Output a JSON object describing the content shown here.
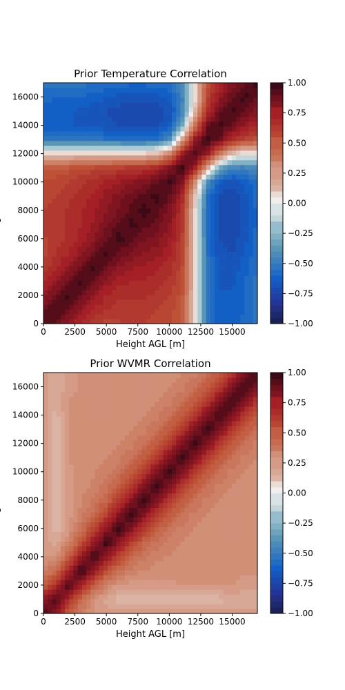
{
  "chart_data": [
    {
      "type": "heatmap",
      "title": "Prior Temperature Correlation",
      "xlabel": "Height AGL [m]",
      "ylabel": "Height AGL [m]",
      "xlim": [
        0,
        17000
      ],
      "ylim": [
        0,
        17000
      ],
      "xticks": [
        0,
        2500,
        5000,
        7500,
        10000,
        12500,
        15000
      ],
      "yticks": [
        0,
        2000,
        4000,
        6000,
        8000,
        10000,
        12000,
        14000,
        16000
      ],
      "x_tick_labels": [
        "0",
        "2500",
        "5000",
        "7500",
        "10000",
        "12500",
        "15000"
      ],
      "y_tick_labels": [
        "0",
        "2000",
        "4000",
        "6000",
        "8000",
        "10000",
        "12000",
        "14000",
        "16000"
      ],
      "colorbar": {
        "range": [
          -1.0,
          1.0
        ],
        "ticks": [
          -1.0,
          -0.75,
          -0.5,
          -0.25,
          0.0,
          0.25,
          0.5,
          0.75,
          1.0
        ],
        "tick_labels": [
          "−1.00",
          "−0.75",
          "−0.50",
          "−0.25",
          "0.00",
          "0.25",
          "0.50",
          "0.75",
          "1.00"
        ],
        "colormap": "balance"
      },
      "heights": [
        0,
        1000,
        2000,
        3000,
        4000,
        5000,
        6000,
        7000,
        8000,
        9000,
        10000,
        11000,
        12000,
        13000,
        14000,
        15000,
        16000,
        17000
      ],
      "values": [
        [
          1.0,
          0.9,
          0.8,
          0.7,
          0.65,
          0.6,
          0.62,
          0.62,
          0.62,
          0.6,
          0.58,
          0.5,
          0.1,
          -0.5,
          -0.6,
          -0.6,
          -0.55,
          -0.5
        ],
        [
          0.9,
          1.0,
          0.9,
          0.8,
          0.72,
          0.68,
          0.65,
          0.65,
          0.65,
          0.62,
          0.6,
          0.52,
          0.1,
          -0.5,
          -0.62,
          -0.62,
          -0.57,
          -0.5
        ],
        [
          0.8,
          0.9,
          1.0,
          0.9,
          0.8,
          0.72,
          0.68,
          0.68,
          0.68,
          0.66,
          0.63,
          0.55,
          0.1,
          -0.48,
          -0.62,
          -0.62,
          -0.58,
          -0.5
        ],
        [
          0.7,
          0.8,
          0.9,
          1.0,
          0.9,
          0.8,
          0.75,
          0.72,
          0.72,
          0.7,
          0.66,
          0.58,
          0.1,
          -0.48,
          -0.63,
          -0.64,
          -0.58,
          -0.5
        ],
        [
          0.65,
          0.72,
          0.8,
          0.9,
          1.0,
          0.9,
          0.82,
          0.78,
          0.76,
          0.74,
          0.7,
          0.6,
          0.1,
          -0.5,
          -0.64,
          -0.66,
          -0.6,
          -0.52
        ],
        [
          0.6,
          0.68,
          0.72,
          0.8,
          0.9,
          1.0,
          0.92,
          0.86,
          0.82,
          0.8,
          0.74,
          0.62,
          0.1,
          -0.52,
          -0.66,
          -0.68,
          -0.62,
          -0.54
        ],
        [
          0.62,
          0.65,
          0.68,
          0.75,
          0.82,
          0.92,
          1.0,
          0.93,
          0.88,
          0.85,
          0.78,
          0.64,
          0.12,
          -0.54,
          -0.68,
          -0.7,
          -0.64,
          -0.55
        ],
        [
          0.62,
          0.65,
          0.68,
          0.72,
          0.78,
          0.86,
          0.93,
          1.0,
          0.94,
          0.9,
          0.82,
          0.66,
          0.12,
          -0.55,
          -0.7,
          -0.72,
          -0.65,
          -0.56
        ],
        [
          0.62,
          0.65,
          0.68,
          0.72,
          0.76,
          0.82,
          0.88,
          0.94,
          1.0,
          0.94,
          0.86,
          0.68,
          0.12,
          -0.55,
          -0.7,
          -0.73,
          -0.66,
          -0.56
        ],
        [
          0.6,
          0.62,
          0.66,
          0.7,
          0.74,
          0.8,
          0.85,
          0.9,
          0.94,
          1.0,
          0.92,
          0.74,
          0.15,
          -0.52,
          -0.68,
          -0.72,
          -0.65,
          -0.55
        ],
        [
          0.58,
          0.6,
          0.63,
          0.66,
          0.7,
          0.74,
          0.78,
          0.82,
          0.86,
          0.92,
          1.0,
          0.85,
          0.35,
          -0.4,
          -0.62,
          -0.66,
          -0.62,
          -0.52
        ],
        [
          0.5,
          0.52,
          0.55,
          0.58,
          0.6,
          0.62,
          0.64,
          0.66,
          0.68,
          0.74,
          0.85,
          1.0,
          0.8,
          0.2,
          -0.3,
          -0.45,
          -0.45,
          -0.4
        ],
        [
          0.1,
          0.1,
          0.1,
          0.1,
          0.1,
          0.1,
          0.12,
          0.12,
          0.12,
          0.15,
          0.35,
          0.8,
          1.0,
          0.8,
          0.4,
          0.1,
          0.0,
          0.0
        ],
        [
          -0.5,
          -0.5,
          -0.48,
          -0.48,
          -0.5,
          -0.52,
          -0.54,
          -0.55,
          -0.55,
          -0.52,
          -0.4,
          0.2,
          0.8,
          1.0,
          0.9,
          0.7,
          0.6,
          0.55
        ],
        [
          -0.6,
          -0.62,
          -0.62,
          -0.63,
          -0.64,
          -0.66,
          -0.68,
          -0.7,
          -0.7,
          -0.68,
          -0.62,
          -0.3,
          0.4,
          0.9,
          1.0,
          0.9,
          0.8,
          0.72
        ],
        [
          -0.6,
          -0.62,
          -0.62,
          -0.64,
          -0.66,
          -0.68,
          -0.7,
          -0.72,
          -0.73,
          -0.72,
          -0.66,
          -0.45,
          0.1,
          0.7,
          0.9,
          1.0,
          0.92,
          0.85
        ],
        [
          -0.55,
          -0.57,
          -0.58,
          -0.58,
          -0.6,
          -0.62,
          -0.64,
          -0.65,
          -0.66,
          -0.65,
          -0.62,
          -0.45,
          0.0,
          0.6,
          0.8,
          0.92,
          1.0,
          0.92
        ],
        [
          -0.5,
          -0.5,
          -0.5,
          -0.5,
          -0.52,
          -0.54,
          -0.55,
          -0.56,
          -0.56,
          -0.55,
          -0.52,
          -0.4,
          0.0,
          0.55,
          0.72,
          0.85,
          0.92,
          1.0
        ]
      ]
    },
    {
      "type": "heatmap",
      "title": "Prior WVMR Correlation",
      "xlabel": "Height AGL [m]",
      "ylabel": "Height AGL [m]",
      "xlim": [
        0,
        17000
      ],
      "ylim": [
        0,
        17000
      ],
      "xticks": [
        0,
        2500,
        5000,
        7500,
        10000,
        12500,
        15000
      ],
      "yticks": [
        0,
        2000,
        4000,
        6000,
        8000,
        10000,
        12000,
        14000,
        16000
      ],
      "x_tick_labels": [
        "0",
        "2500",
        "5000",
        "7500",
        "10000",
        "12500",
        "15000"
      ],
      "y_tick_labels": [
        "0",
        "2000",
        "4000",
        "6000",
        "8000",
        "10000",
        "12000",
        "14000",
        "16000"
      ],
      "colorbar": {
        "range": [
          -1.0,
          1.0
        ],
        "ticks": [
          -1.0,
          -0.75,
          -0.5,
          -0.25,
          0.0,
          0.25,
          0.5,
          0.75,
          1.0
        ],
        "tick_labels": [
          "−1.00",
          "−0.75",
          "−0.50",
          "−0.25",
          "0.00",
          "0.25",
          "0.50",
          "0.75",
          "1.00"
        ],
        "colormap": "balance"
      },
      "heights": [
        0,
        1000,
        2000,
        3000,
        4000,
        5000,
        6000,
        7000,
        8000,
        9000,
        10000,
        11000,
        12000,
        13000,
        14000,
        15000,
        16000,
        17000
      ],
      "values": [
        [
          1.0,
          0.8,
          0.5,
          0.35,
          0.28,
          0.25,
          0.25,
          0.25,
          0.25,
          0.25,
          0.25,
          0.25,
          0.25,
          0.25,
          0.25,
          0.25,
          0.25,
          0.25
        ],
        [
          0.8,
          1.0,
          0.7,
          0.45,
          0.3,
          0.2,
          0.15,
          0.15,
          0.15,
          0.15,
          0.15,
          0.15,
          0.15,
          0.15,
          0.15,
          0.18,
          0.18,
          0.18
        ],
        [
          0.5,
          0.7,
          1.0,
          0.75,
          0.5,
          0.35,
          0.25,
          0.25,
          0.25,
          0.25,
          0.25,
          0.28,
          0.28,
          0.28,
          0.28,
          0.28,
          0.25,
          0.25
        ],
        [
          0.35,
          0.45,
          0.75,
          1.0,
          0.8,
          0.55,
          0.42,
          0.35,
          0.32,
          0.3,
          0.3,
          0.3,
          0.3,
          0.3,
          0.3,
          0.3,
          0.28,
          0.28
        ],
        [
          0.28,
          0.3,
          0.5,
          0.8,
          1.0,
          0.82,
          0.6,
          0.45,
          0.38,
          0.34,
          0.32,
          0.3,
          0.3,
          0.3,
          0.3,
          0.3,
          0.28,
          0.28
        ],
        [
          0.25,
          0.2,
          0.35,
          0.55,
          0.82,
          1.0,
          0.82,
          0.62,
          0.48,
          0.4,
          0.35,
          0.32,
          0.3,
          0.3,
          0.3,
          0.3,
          0.28,
          0.28
        ],
        [
          0.25,
          0.15,
          0.25,
          0.42,
          0.6,
          0.82,
          1.0,
          0.84,
          0.64,
          0.5,
          0.42,
          0.36,
          0.32,
          0.3,
          0.3,
          0.3,
          0.28,
          0.28
        ],
        [
          0.25,
          0.15,
          0.25,
          0.35,
          0.45,
          0.62,
          0.84,
          1.0,
          0.84,
          0.65,
          0.52,
          0.42,
          0.36,
          0.32,
          0.3,
          0.3,
          0.28,
          0.28
        ],
        [
          0.25,
          0.15,
          0.25,
          0.32,
          0.38,
          0.48,
          0.64,
          0.84,
          1.0,
          0.85,
          0.66,
          0.52,
          0.42,
          0.36,
          0.32,
          0.3,
          0.28,
          0.28
        ],
        [
          0.25,
          0.15,
          0.25,
          0.3,
          0.34,
          0.4,
          0.5,
          0.65,
          0.85,
          1.0,
          0.86,
          0.66,
          0.52,
          0.42,
          0.36,
          0.32,
          0.3,
          0.28
        ],
        [
          0.25,
          0.15,
          0.25,
          0.3,
          0.32,
          0.35,
          0.42,
          0.52,
          0.66,
          0.86,
          1.0,
          0.86,
          0.66,
          0.52,
          0.42,
          0.36,
          0.32,
          0.3
        ],
        [
          0.25,
          0.15,
          0.28,
          0.3,
          0.3,
          0.32,
          0.36,
          0.42,
          0.52,
          0.66,
          0.86,
          1.0,
          0.86,
          0.66,
          0.52,
          0.42,
          0.36,
          0.32
        ],
        [
          0.25,
          0.15,
          0.28,
          0.3,
          0.3,
          0.3,
          0.32,
          0.36,
          0.42,
          0.52,
          0.66,
          0.86,
          1.0,
          0.86,
          0.66,
          0.52,
          0.42,
          0.36
        ],
        [
          0.25,
          0.15,
          0.28,
          0.3,
          0.3,
          0.3,
          0.3,
          0.32,
          0.36,
          0.42,
          0.52,
          0.66,
          0.86,
          1.0,
          0.86,
          0.66,
          0.52,
          0.42
        ],
        [
          0.25,
          0.15,
          0.28,
          0.3,
          0.3,
          0.3,
          0.3,
          0.3,
          0.32,
          0.36,
          0.42,
          0.52,
          0.66,
          0.86,
          1.0,
          0.86,
          0.66,
          0.52
        ],
        [
          0.25,
          0.18,
          0.28,
          0.3,
          0.3,
          0.3,
          0.3,
          0.3,
          0.3,
          0.32,
          0.36,
          0.42,
          0.52,
          0.66,
          0.86,
          1.0,
          0.86,
          0.66
        ],
        [
          0.25,
          0.18,
          0.25,
          0.28,
          0.28,
          0.28,
          0.28,
          0.28,
          0.28,
          0.3,
          0.32,
          0.36,
          0.42,
          0.52,
          0.66,
          0.86,
          1.0,
          0.86
        ],
        [
          0.25,
          0.18,
          0.25,
          0.28,
          0.28,
          0.28,
          0.28,
          0.28,
          0.28,
          0.28,
          0.3,
          0.32,
          0.36,
          0.42,
          0.52,
          0.66,
          0.86,
          1.0
        ]
      ]
    }
  ]
}
